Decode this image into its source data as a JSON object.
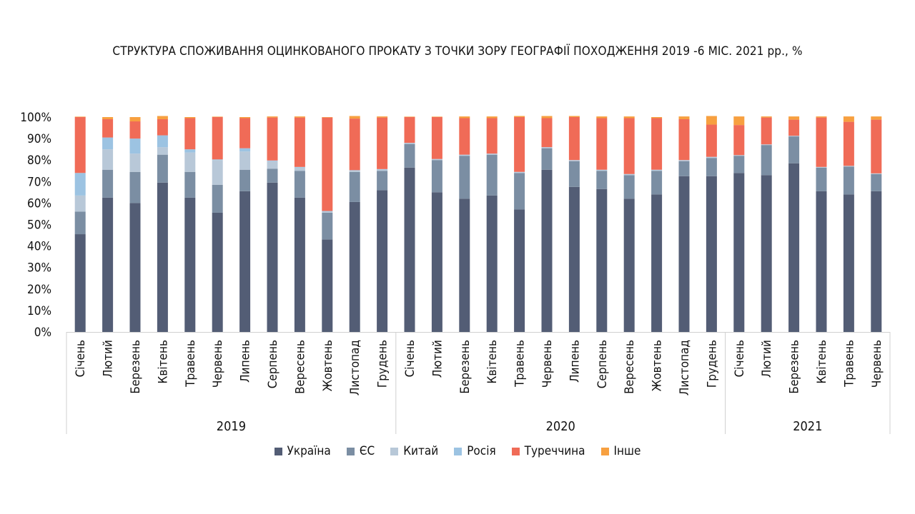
{
  "chart_data": {
    "type": "bar",
    "stacked": true,
    "title": "СТРУКТУРА СПОЖИВАННЯ ОЦИНКОВАНОГО ПРОКАТУ З ТОЧКИ ЗОРУ ГЕОГРАФІЇ ПОХОДЖЕННЯ 2019 -6 МІС. 2021 рр., %",
    "ylim": [
      0,
      100
    ],
    "yticks": [
      "0%",
      "10%",
      "20%",
      "30%",
      "40%",
      "50%",
      "60%",
      "70%",
      "80%",
      "90%",
      "100%"
    ],
    "grid": false,
    "legend_position": "bottom",
    "groups": [
      {
        "label": "2019",
        "months": [
          "Січень",
          "Лютий",
          "Березень",
          "Квітень",
          "Травень",
          "Червень",
          "Липень",
          "Серпень",
          "Вересень",
          "Жовтень",
          "Листопад",
          "Грудень"
        ]
      },
      {
        "label": "2020",
        "months": [
          "Січень",
          "Лютий",
          "Березень",
          "Квітень",
          "Травень",
          "Червень",
          "Липень",
          "Серпень",
          "Вересень",
          "Жовтень",
          "Листопад",
          "Грудень"
        ]
      },
      {
        "label": "2021",
        "months": [
          "Січень",
          "Лютий",
          "Березень",
          "Квітень",
          "Травень",
          "Червень"
        ]
      }
    ],
    "series": [
      {
        "name": "Україна",
        "color": "#535d75",
        "values": [
          45.5,
          62.5,
          60,
          69.5,
          62.5,
          55.5,
          65.5,
          69.5,
          62.5,
          43,
          60.5,
          66,
          76.5,
          65,
          62,
          63.5,
          57,
          75.5,
          67.5,
          66.5,
          62,
          64,
          72.5,
          72.5,
          74,
          73,
          78.5,
          65.5,
          64,
          65.5
        ]
      },
      {
        "name": "ЄС",
        "color": "#7b8ea3",
        "values": [
          10.5,
          13,
          14.5,
          13,
          12,
          13,
          10,
          6.5,
          12.5,
          12.5,
          14,
          9,
          11,
          15,
          20,
          19,
          17,
          10,
          12,
          8.5,
          11,
          11,
          7,
          8.5,
          8,
          14,
          12.5,
          11,
          13,
          8
        ]
      },
      {
        "name": "Китай",
        "color": "#b8c8d8",
        "values": [
          7.5,
          9.5,
          8.5,
          3.5,
          9,
          11.5,
          8.5,
          3.5,
          1.5,
          0.5,
          0.5,
          0.5,
          0.3,
          0.3,
          0.3,
          0.3,
          0.3,
          0.3,
          0.3,
          0.3,
          0.3,
          0.3,
          0.3,
          0.3,
          0.2,
          0.2,
          0.2,
          0.2,
          0.2,
          0.2
        ]
      },
      {
        "name": "Росія",
        "color": "#9cc3e2",
        "values": [
          10.5,
          5.5,
          7,
          5.5,
          1.5,
          0.3,
          1.5,
          0.3,
          0.3,
          0.3,
          0.3,
          0.3,
          0.2,
          0.2,
          0.2,
          0.2,
          0.2,
          0.2,
          0.2,
          0.2,
          0.2,
          0.2,
          0.2,
          0.2,
          0.1,
          0.1,
          0.1,
          0.1,
          0.1,
          0.1
        ]
      },
      {
        "name": "Туреччина",
        "color": "#f06b57",
        "values": [
          26,
          8.5,
          8,
          7.5,
          14.5,
          19.7,
          14,
          20,
          23,
          43.5,
          24,
          24,
          12,
          19.5,
          17,
          16.5,
          25.5,
          13.5,
          20,
          24,
          26,
          24,
          19,
          15,
          14,
          12.5,
          7.5,
          23,
          20.5,
          25
        ]
      },
      {
        "name": "Інше",
        "color": "#f7a040",
        "values": [
          0.2,
          1,
          2,
          1.5,
          0.5,
          0.2,
          0.5,
          0.5,
          0.5,
          0.2,
          1.2,
          0.5,
          0.2,
          0.2,
          0.8,
          0.8,
          0.5,
          1,
          0.5,
          0.8,
          0.8,
          0.5,
          1.3,
          4,
          4,
          0.5,
          1.5,
          0.5,
          2.5,
          1.5
        ]
      }
    ]
  }
}
